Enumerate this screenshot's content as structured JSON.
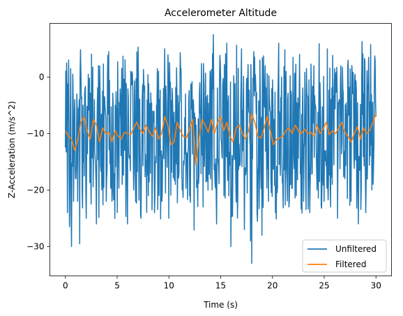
{
  "chart_data": {
    "type": "line",
    "title": "Accelerometer Altitude",
    "xlabel": "Time (s)",
    "ylabel": "Z-Acceleration (m/s^2)",
    "xlim": [
      -1.5,
      31.5
    ],
    "ylim": [
      -35.2,
      9.5
    ],
    "xticks": [
      0,
      5,
      10,
      15,
      20,
      25,
      30
    ],
    "yticks": [
      0,
      -10,
      -20,
      -30
    ],
    "ytick_labels": [
      "0",
      "−10",
      "−20",
      "−30"
    ],
    "grid": false,
    "legend_position": "bottom-right",
    "colors": {
      "unfiltered": "#1f77b4",
      "filtered": "#ff7f0e"
    },
    "series": [
      {
        "name": "Unfiltered",
        "sampling": "dense noisy signal, approx 0.04 s spacing, 0-30 s",
        "x": [
          0.0,
          0.1,
          0.2,
          0.3,
          0.4,
          0.5,
          0.6,
          0.7,
          0.8,
          0.9,
          1.0,
          1.1,
          1.2,
          1.3,
          1.4,
          1.5,
          1.6,
          1.7,
          1.8,
          1.9,
          2.0,
          2.2,
          2.5,
          2.8,
          3.0,
          3.2,
          3.5,
          3.8,
          4.0,
          4.2,
          4.5,
          4.8,
          5.0,
          5.2,
          5.5,
          5.8,
          6.0,
          6.3,
          6.6,
          7.0,
          7.3,
          7.6,
          8.0,
          8.3,
          8.6,
          9.0,
          9.3,
          9.6,
          10.0,
          10.3,
          10.6,
          11.0,
          11.3,
          11.6,
          12.0,
          12.3,
          12.6,
          13.0,
          13.3,
          13.6,
          14.0,
          14.3,
          14.6,
          15.0,
          15.3,
          15.6,
          16.0,
          16.3,
          16.6,
          17.0,
          17.3,
          17.6,
          17.9,
          18.0,
          18.2,
          18.5,
          18.8,
          19.0,
          19.3,
          19.6,
          20.0,
          20.3,
          20.6,
          21.0,
          21.3,
          21.6,
          22.0,
          22.3,
          22.6,
          23.0,
          23.3,
          23.6,
          24.0,
          24.3,
          24.6,
          25.0,
          25.3,
          25.6,
          26.0,
          26.3,
          26.6,
          27.0,
          27.3,
          27.6,
          28.0,
          28.3,
          28.6,
          29.0,
          29.3,
          29.6,
          30.0
        ],
        "y": [
          -12.5,
          2.5,
          -24.0,
          3.0,
          -26.5,
          1.5,
          -30.0,
          0.5,
          -22.0,
          -4.0,
          -18.0,
          -3.0,
          -22.0,
          -6.0,
          -29.5,
          1.0,
          -20.0,
          -5.0,
          -17.5,
          -2.0,
          -25.0,
          0.5,
          -22.5,
          -4.0,
          -26.0,
          2.0,
          -20.0,
          -3.5,
          -18.0,
          4.5,
          -22.0,
          -5.0,
          -24.0,
          -4.5,
          -19.0,
          -3.0,
          -26.0,
          1.0,
          -20.0,
          -3.5,
          -25.0,
          -2.5,
          -21.0,
          -6.0,
          -24.0,
          1.0,
          -22.0,
          5.0,
          -25.0,
          -2.0,
          -19.0,
          -4.5,
          -20.0,
          -3.0,
          -21.0,
          -6.0,
          -14.0,
          -1.0,
          -23.0,
          -3.5,
          -18.0,
          7.5,
          -26.0,
          -0.5,
          -21.0,
          6.0,
          -30.0,
          -3.0,
          -25.0,
          5.0,
          -27.0,
          -2.0,
          -29.0,
          -33.0,
          4.5,
          -24.0,
          3.0,
          -28.0,
          2.0,
          -22.0,
          -0.5,
          -24.0,
          6.0,
          -19.0,
          1.0,
          -23.0,
          3.5,
          -21.0,
          4.0,
          -22.0,
          1.5,
          -24.0,
          2.0,
          -20.0,
          -1.0,
          -22.0,
          5.0,
          -23.0,
          1.5,
          -25.0,
          2.0,
          -18.0,
          3.0,
          -22.0,
          0.5,
          -26.0,
          -1.0,
          -24.0,
          3.5,
          -20.0,
          -7.0
        ]
      },
      {
        "name": "Filtered",
        "x": [
          0.0,
          0.3,
          0.6,
          0.9,
          1.2,
          1.5,
          1.8,
          2.1,
          2.4,
          2.7,
          3.0,
          3.3,
          3.6,
          3.9,
          4.2,
          4.5,
          4.8,
          5.1,
          5.4,
          5.7,
          6.0,
          6.3,
          6.6,
          6.9,
          7.2,
          7.5,
          7.8,
          8.1,
          8.4,
          8.7,
          9.0,
          9.3,
          9.6,
          9.9,
          10.2,
          10.5,
          10.8,
          11.1,
          11.4,
          11.7,
          12.0,
          12.3,
          12.6,
          12.9,
          13.2,
          13.5,
          13.8,
          14.1,
          14.4,
          14.7,
          15.0,
          15.3,
          15.6,
          15.9,
          16.2,
          16.5,
          16.8,
          17.1,
          17.4,
          17.7,
          18.0,
          18.3,
          18.6,
          18.9,
          19.2,
          19.5,
          19.8,
          20.1,
          20.4,
          20.7,
          21.0,
          21.3,
          21.6,
          21.9,
          22.2,
          22.5,
          22.8,
          23.1,
          23.4,
          23.7,
          24.0,
          24.3,
          24.6,
          24.9,
          25.2,
          25.5,
          25.8,
          26.1,
          26.4,
          26.7,
          27.0,
          27.3,
          27.6,
          27.9,
          28.2,
          28.5,
          28.8,
          29.1,
          29.4,
          29.7,
          30.0
        ],
        "y": [
          -9.5,
          -10.5,
          -11.0,
          -13.0,
          -11.0,
          -8.0,
          -7.0,
          -9.5,
          -11.0,
          -7.5,
          -8.5,
          -11.5,
          -9.0,
          -10.0,
          -9.8,
          -11.5,
          -9.5,
          -10.5,
          -11.0,
          -9.8,
          -10.0,
          -10.2,
          -9.0,
          -8.0,
          -9.2,
          -10.0,
          -8.5,
          -9.7,
          -10.5,
          -9.0,
          -11.0,
          -10.0,
          -7.0,
          -8.5,
          -12.0,
          -11.5,
          -8.0,
          -9.5,
          -10.5,
          -10.8,
          -9.0,
          -7.5,
          -15.5,
          -11.0,
          -7.5,
          -8.5,
          -9.8,
          -7.5,
          -10.0,
          -8.0,
          -7.0,
          -9.5,
          -8.0,
          -10.5,
          -11.5,
          -9.0,
          -8.5,
          -10.0,
          -11.0,
          -9.5,
          -6.5,
          -8.0,
          -10.5,
          -10.8,
          -9.0,
          -7.0,
          -9.5,
          -12.0,
          -11.0,
          -10.8,
          -10.5,
          -9.5,
          -9.0,
          -10.0,
          -8.5,
          -9.5,
          -10.0,
          -9.2,
          -10.0,
          -9.8,
          -10.5,
          -8.5,
          -10.0,
          -9.2,
          -8.0,
          -10.2,
          -9.5,
          -10.0,
          -9.0,
          -8.0,
          -9.8,
          -10.5,
          -11.5,
          -10.0,
          -8.8,
          -11.0,
          -9.0,
          -10.0,
          -9.5,
          -8.0,
          -6.5
        ]
      }
    ]
  }
}
